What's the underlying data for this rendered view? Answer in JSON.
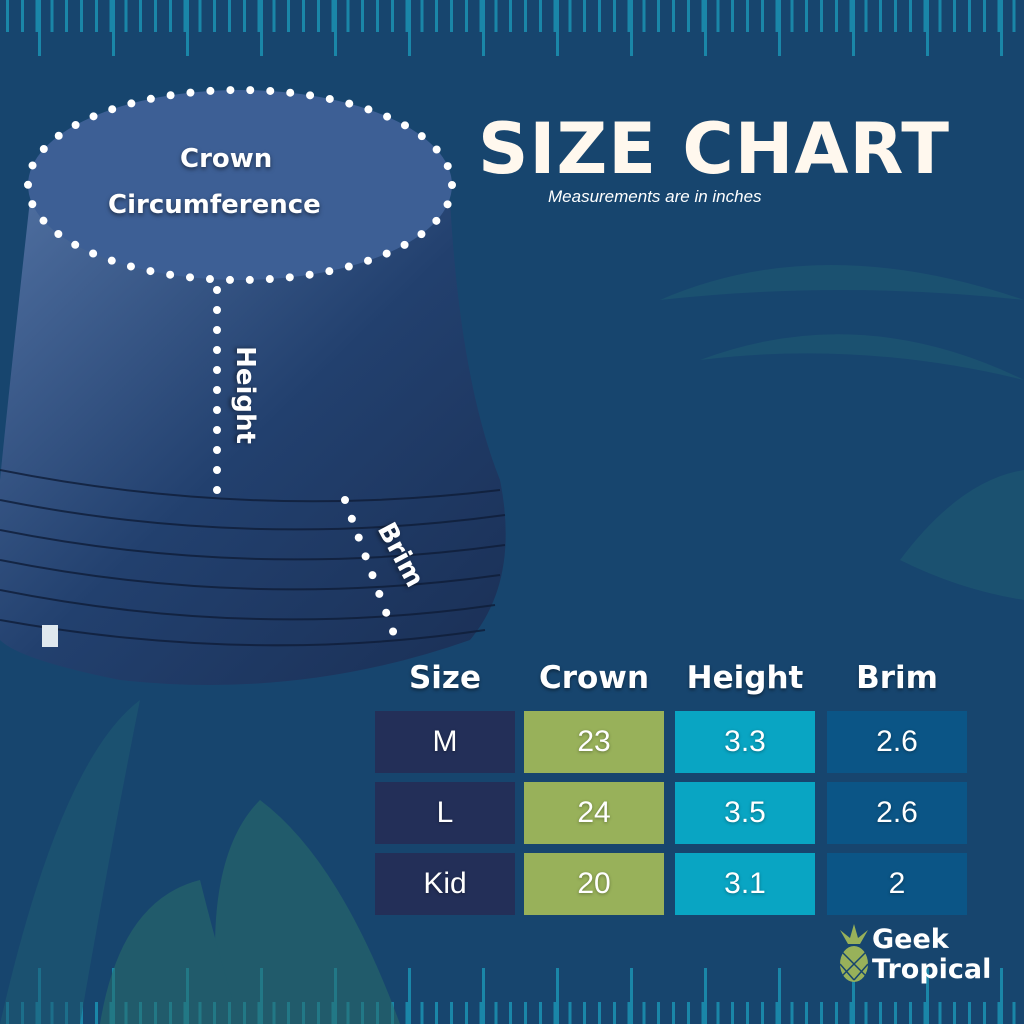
{
  "title": "SIZE CHART",
  "subtitle": "Measurements are in inches",
  "hat_labels": {
    "crown": "Crown",
    "circumference": "Circumference",
    "height": "Height",
    "brim": "Brim"
  },
  "table": {
    "headers": [
      "Size",
      "Crown",
      "Height",
      "Brim"
    ],
    "rows": [
      [
        "M",
        "23",
        "3.3",
        "2.6"
      ],
      [
        "L",
        "24",
        "3.5",
        "2.6"
      ],
      [
        "Kid",
        "20",
        "3.1",
        "2"
      ]
    ],
    "column_colors": [
      "#232f58",
      "#98b15a",
      "#09a5c3",
      "#0b5586"
    ]
  },
  "brand": {
    "line1": "Geek",
    "line2": "Tropical"
  },
  "colors": {
    "background": "#17456e",
    "ruler": "#1a86a8",
    "title": "#fff8ee"
  }
}
